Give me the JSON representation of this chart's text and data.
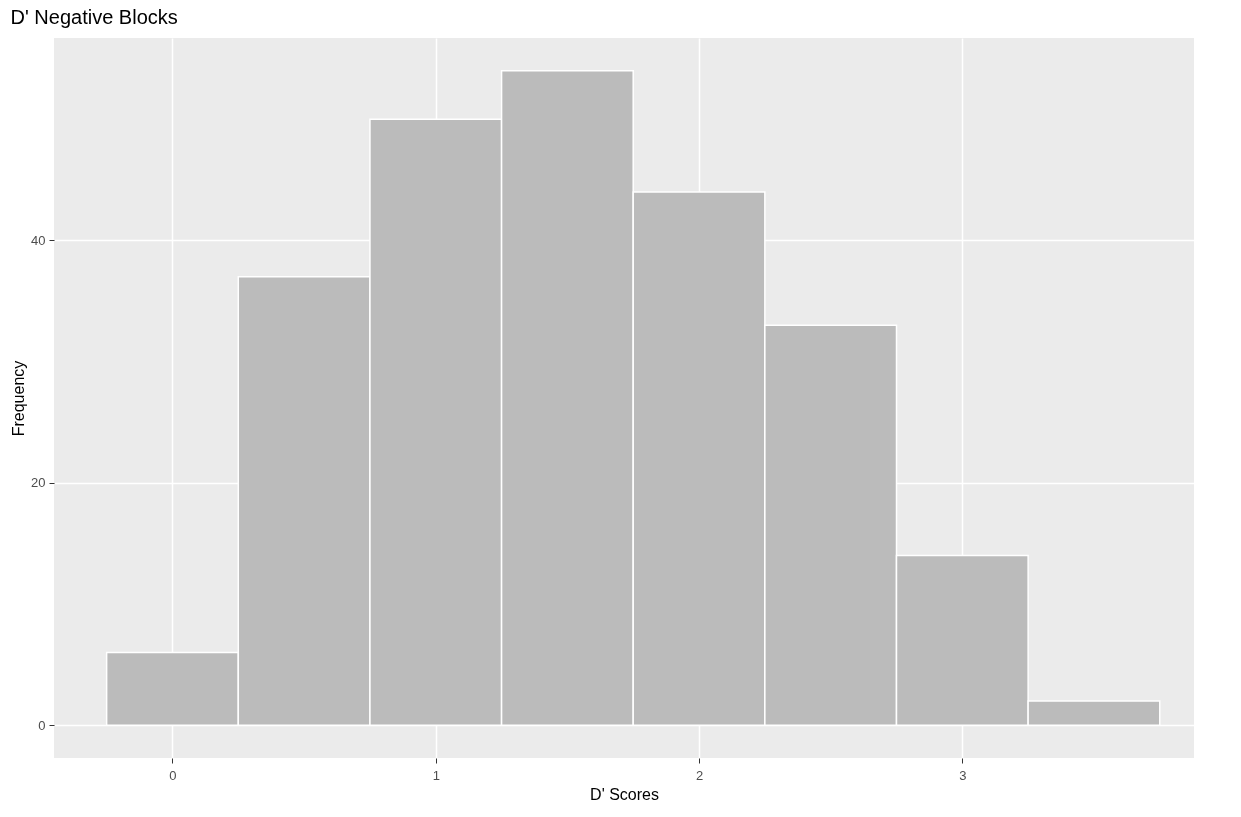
{
  "chart_data": {
    "type": "histogram",
    "title": "D' Negative Blocks",
    "xlabel": "D' Scores",
    "ylabel": "Frequency",
    "bins": [
      -0.25,
      0.25,
      0.75,
      1.25,
      1.75,
      2.25,
      2.75,
      3.25,
      3.75
    ],
    "values": [
      6,
      37,
      50,
      54,
      44,
      33,
      14,
      2
    ],
    "color": "#bbbbbb",
    "xlim": [
      -0.45,
      3.88
    ],
    "xticks": [
      0,
      1,
      2,
      3
    ],
    "ylim": [
      -2.7,
      56.7
    ],
    "yticks": [
      0,
      20,
      40
    ],
    "grid": true
  }
}
